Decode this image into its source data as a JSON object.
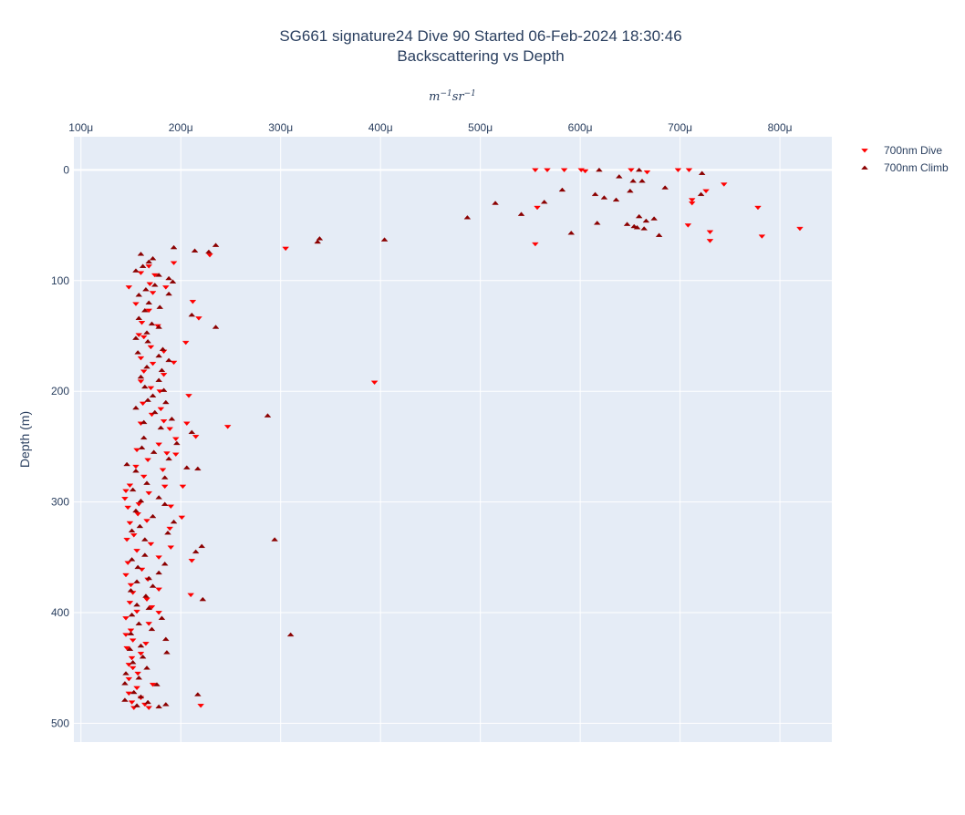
{
  "chart_data": {
    "type": "scatter",
    "title": "SG661 signature24 Dive 90 Started 06-Feb-2024 18:30:46",
    "subtitle": "Backscattering vs Depth",
    "xlabel": "m^-1 sr^-1",
    "ylabel": "Depth (m)",
    "xlim": [
      9.2e-05,
      0.000852
    ],
    "ylim": [
      517,
      -30
    ],
    "x_axis_position": "top",
    "y_reversed": true,
    "grid": true,
    "legend_position": "top-right",
    "xticks": [
      {
        "value": 0.0001,
        "label": "100μ"
      },
      {
        "value": 0.0002,
        "label": "200μ"
      },
      {
        "value": 0.0003,
        "label": "300μ"
      },
      {
        "value": 0.0004,
        "label": "400μ"
      },
      {
        "value": 0.0005,
        "label": "500μ"
      },
      {
        "value": 0.0006,
        "label": "600μ"
      },
      {
        "value": 0.0007,
        "label": "700μ"
      },
      {
        "value": 0.0008,
        "label": "800μ"
      }
    ],
    "yticks": [
      {
        "value": 0,
        "label": "0"
      },
      {
        "value": 100,
        "label": "100"
      },
      {
        "value": 200,
        "label": "200"
      },
      {
        "value": 300,
        "label": "300"
      },
      {
        "value": 400,
        "label": "400"
      },
      {
        "value": 500,
        "label": "500"
      }
    ],
    "series": [
      {
        "name": "700nm Dive",
        "color": "#ff0000",
        "marker": "triangle-down",
        "points": [
          [
            0.000555,
            0
          ],
          [
            0.000567,
            0
          ],
          [
            0.000584,
            0
          ],
          [
            0.000601,
            0
          ],
          [
            0.000605,
            1
          ],
          [
            0.000651,
            0
          ],
          [
            0.000667,
            2
          ],
          [
            0.000698,
            0
          ],
          [
            0.000709,
            0
          ],
          [
            0.000744,
            13
          ],
          [
            0.000726,
            19
          ],
          [
            0.000712,
            27
          ],
          [
            0.000712,
            30
          ],
          [
            0.000557,
            34
          ],
          [
            0.000778,
            34
          ],
          [
            0.000708,
            50
          ],
          [
            0.00073,
            56
          ],
          [
            0.00073,
            64
          ],
          [
            0.00082,
            53
          ],
          [
            0.000782,
            60
          ],
          [
            0.000555,
            67
          ],
          [
            0.000305,
            71
          ],
          [
            0.000229,
            77
          ],
          [
            0.000193,
            84
          ],
          [
            0.000168,
            87
          ],
          [
            0.00016,
            93
          ],
          [
            0.000174,
            95
          ],
          [
            0.000169,
            103
          ],
          [
            0.000148,
            106
          ],
          [
            0.000185,
            106
          ],
          [
            0.000172,
            111
          ],
          [
            0.000212,
            119
          ],
          [
            0.000155,
            121
          ],
          [
            0.000168,
            127
          ],
          [
            0.000218,
            134
          ],
          [
            0.000161,
            138
          ],
          [
            0.000177,
            141
          ],
          [
            0.000158,
            149
          ],
          [
            0.000163,
            151
          ],
          [
            0.000205,
            156
          ],
          [
            0.00017,
            160
          ],
          [
            0.000183,
            164
          ],
          [
            0.00016,
            170
          ],
          [
            0.000193,
            174
          ],
          [
            0.000172,
            175
          ],
          [
            0.000163,
            182
          ],
          [
            0.000183,
            185
          ],
          [
            0.00016,
            191
          ],
          [
            0.000394,
            192
          ],
          [
            0.00017,
            197
          ],
          [
            0.000179,
            200
          ],
          [
            0.000208,
            204
          ],
          [
            0.000162,
            211
          ],
          [
            0.00018,
            216
          ],
          [
            0.000171,
            221
          ],
          [
            0.000183,
            227
          ],
          [
            0.00016,
            229
          ],
          [
            0.000206,
            229
          ],
          [
            0.000247,
            232
          ],
          [
            0.000189,
            234
          ],
          [
            0.000215,
            241
          ],
          [
            0.000195,
            243
          ],
          [
            0.000178,
            248
          ],
          [
            0.000156,
            253
          ],
          [
            0.000186,
            256
          ],
          [
            0.000195,
            257
          ],
          [
            0.000167,
            262
          ],
          [
            0.000155,
            268
          ],
          [
            0.000182,
            271
          ],
          [
            0.000163,
            277
          ],
          [
            0.000149,
            285
          ],
          [
            0.000184,
            286
          ],
          [
            0.000202,
            286
          ],
          [
            0.000145,
            290
          ],
          [
            0.000168,
            292
          ],
          [
            0.000144,
            297
          ],
          [
            0.000158,
            302
          ],
          [
            0.00019,
            304
          ],
          [
            0.000147,
            305
          ],
          [
            0.000157,
            311
          ],
          [
            0.000201,
            314
          ],
          [
            0.000166,
            317
          ],
          [
            0.000149,
            319
          ],
          [
            0.000189,
            324
          ],
          [
            0.000153,
            330
          ],
          [
            0.000146,
            334
          ],
          [
            0.00017,
            338
          ],
          [
            0.00019,
            341
          ],
          [
            0.000156,
            344
          ],
          [
            0.000178,
            350
          ],
          [
            0.000211,
            353
          ],
          [
            0.000147,
            355
          ],
          [
            0.000161,
            361
          ],
          [
            0.000145,
            366
          ],
          [
            0.000167,
            370
          ],
          [
            0.00015,
            375
          ],
          [
            0.000178,
            379
          ],
          [
            0.000152,
            382
          ],
          [
            0.00021,
            384
          ],
          [
            0.000166,
            388
          ],
          [
            0.000149,
            391
          ],
          [
            0.000171,
            395
          ],
          [
            0.000156,
            399
          ],
          [
            0.000178,
            400
          ],
          [
            0.000145,
            405
          ],
          [
            0.000168,
            410
          ],
          [
            0.00015,
            416
          ],
          [
            0.000145,
            420
          ],
          [
            0.000152,
            425
          ],
          [
            0.000165,
            428
          ],
          [
            0.000146,
            432
          ],
          [
            0.00016,
            437
          ],
          [
            0.000151,
            441
          ],
          [
            0.000148,
            447
          ],
          [
            0.000152,
            450
          ],
          [
            0.000157,
            455
          ],
          [
            0.000148,
            460
          ],
          [
            0.000172,
            465
          ],
          [
            0.000156,
            468
          ],
          [
            0.000148,
            473
          ],
          [
            0.00016,
            477
          ],
          [
            0.000151,
            481
          ],
          [
            0.000164,
            483
          ],
          [
            0.000153,
            486
          ],
          [
            0.000168,
            486
          ],
          [
            0.00022,
            484
          ]
        ]
      },
      {
        "name": "700nm Climb",
        "color": "#8b0000",
        "marker": "triangle-up",
        "points": [
          [
            0.000619,
            0
          ],
          [
            0.000659,
            0
          ],
          [
            0.000722,
            3
          ],
          [
            0.000639,
            6
          ],
          [
            0.000662,
            10
          ],
          [
            0.000653,
            10
          ],
          [
            0.000685,
            16
          ],
          [
            0.000582,
            18
          ],
          [
            0.00065,
            19
          ],
          [
            0.000615,
            22
          ],
          [
            0.000624,
            25
          ],
          [
            0.000636,
            27
          ],
          [
            0.000721,
            22
          ],
          [
            0.000564,
            29
          ],
          [
            0.000515,
            30
          ],
          [
            0.000541,
            40
          ],
          [
            0.000487,
            43
          ],
          [
            0.000659,
            42
          ],
          [
            0.000666,
            46
          ],
          [
            0.000674,
            44
          ],
          [
            0.000617,
            48
          ],
          [
            0.000647,
            49
          ],
          [
            0.000654,
            51
          ],
          [
            0.000657,
            52
          ],
          [
            0.000664,
            53
          ],
          [
            0.000591,
            57
          ],
          [
            0.000679,
            59
          ],
          [
            0.000339,
            62
          ],
          [
            0.000337,
            65
          ],
          [
            0.000404,
            63
          ],
          [
            0.000235,
            68
          ],
          [
            0.000214,
            73
          ],
          [
            0.000193,
            70
          ],
          [
            0.000228,
            74
          ],
          [
            0.00016,
            76
          ],
          [
            0.000172,
            80
          ],
          [
            0.000168,
            83
          ],
          [
            0.000162,
            87
          ],
          [
            0.000155,
            91
          ],
          [
            0.000178,
            95
          ],
          [
            0.000188,
            98
          ],
          [
            0.000192,
            101
          ],
          [
            0.000174,
            104
          ],
          [
            0.000165,
            108
          ],
          [
            0.000188,
            112
          ],
          [
            0.000158,
            113
          ],
          [
            0.000168,
            120
          ],
          [
            0.000179,
            124
          ],
          [
            0.000164,
            127
          ],
          [
            0.000211,
            131
          ],
          [
            0.000158,
            134
          ],
          [
            0.000171,
            139
          ],
          [
            0.000178,
            142
          ],
          [
            0.000235,
            142
          ],
          [
            0.000166,
            147
          ],
          [
            0.000155,
            152
          ],
          [
            0.000167,
            155
          ],
          [
            0.000182,
            162
          ],
          [
            0.000157,
            165
          ],
          [
            0.000178,
            168
          ],
          [
            0.000188,
            172
          ],
          [
            0.000166,
            178
          ],
          [
            0.000181,
            181
          ],
          [
            0.00016,
            187
          ],
          [
            0.000178,
            190
          ],
          [
            0.000164,
            196
          ],
          [
            0.000183,
            199
          ],
          [
            0.000172,
            204
          ],
          [
            0.000167,
            208
          ],
          [
            0.000185,
            210
          ],
          [
            0.000155,
            215
          ],
          [
            0.000174,
            219
          ],
          [
            0.000191,
            225
          ],
          [
            0.000287,
            222
          ],
          [
            0.000163,
            228
          ],
          [
            0.00018,
            233
          ],
          [
            0.000211,
            237
          ],
          [
            0.000163,
            242
          ],
          [
            0.000196,
            247
          ],
          [
            0.000161,
            251
          ],
          [
            0.000173,
            255
          ],
          [
            0.000188,
            261
          ],
          [
            0.000146,
            266
          ],
          [
            0.000206,
            269
          ],
          [
            0.000155,
            272
          ],
          [
            0.000217,
            270
          ],
          [
            0.000184,
            278
          ],
          [
            0.000166,
            283
          ],
          [
            0.000152,
            289
          ],
          [
            0.000178,
            296
          ],
          [
            0.00016,
            299
          ],
          [
            0.000184,
            302
          ],
          [
            0.000155,
            308
          ],
          [
            0.000172,
            313
          ],
          [
            0.000193,
            318
          ],
          [
            0.000159,
            322
          ],
          [
            0.000151,
            326
          ],
          [
            0.000187,
            328
          ],
          [
            0.000164,
            334
          ],
          [
            0.000294,
            334
          ],
          [
            0.000221,
            340
          ],
          [
            0.000215,
            345
          ],
          [
            0.000164,
            348
          ],
          [
            0.000151,
            352
          ],
          [
            0.000184,
            356
          ],
          [
            0.000157,
            359
          ],
          [
            0.000178,
            364
          ],
          [
            0.000168,
            369
          ],
          [
            0.000156,
            372
          ],
          [
            0.000172,
            376
          ],
          [
            0.00015,
            380
          ],
          [
            0.000165,
            385
          ],
          [
            0.000222,
            388
          ],
          [
            0.000156,
            393
          ],
          [
            0.000168,
            396
          ],
          [
            0.000151,
            402
          ],
          [
            0.000181,
            405
          ],
          [
            0.000158,
            410
          ],
          [
            0.000171,
            415
          ],
          [
            0.00031,
            420
          ],
          [
            0.00015,
            419
          ],
          [
            0.000185,
            424
          ],
          [
            0.00016,
            430
          ],
          [
            0.000149,
            433
          ],
          [
            0.000186,
            436
          ],
          [
            0.000162,
            440
          ],
          [
            0.000152,
            445
          ],
          [
            0.000166,
            450
          ],
          [
            0.000145,
            455
          ],
          [
            0.000158,
            459
          ],
          [
            0.000144,
            464
          ],
          [
            0.000176,
            465
          ],
          [
            0.000153,
            472
          ],
          [
            0.000217,
            474
          ],
          [
            0.00016,
            476
          ],
          [
            0.000144,
            479
          ],
          [
            0.000167,
            481
          ],
          [
            0.000156,
            484
          ],
          [
            0.000185,
            483
          ],
          [
            0.000178,
            485
          ]
        ]
      }
    ]
  }
}
